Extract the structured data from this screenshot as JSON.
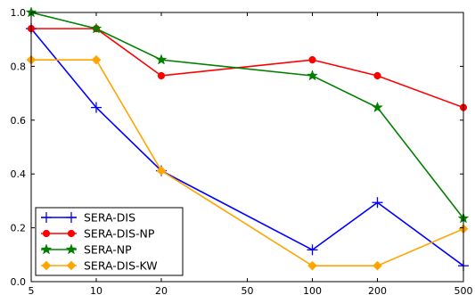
{
  "chart_data": {
    "type": "line",
    "title": "",
    "xlabel": "",
    "ylabel": "",
    "x_scale": "log",
    "x": [
      5,
      10,
      20,
      100,
      200,
      500
    ],
    "x_ticks": [
      5,
      10,
      20,
      50,
      100,
      200,
      500
    ],
    "x_tick_labels": [
      "5",
      "10",
      "20",
      "50",
      "100",
      "200",
      "500"
    ],
    "xlim": [
      5,
      500
    ],
    "ylim": [
      0.0,
      1.0
    ],
    "y_ticks": [
      0.0,
      0.2,
      0.4,
      0.6,
      0.8,
      1.0
    ],
    "y_tick_labels": [
      "0.0",
      "0.2",
      "0.4",
      "0.6",
      "0.8",
      "1.0"
    ],
    "grid": false,
    "legend_position": "bottom-left",
    "series": [
      {
        "name": "SERA-DIS",
        "color": "#0000ff",
        "marker": "plus",
        "values": [
          0.94,
          0.647,
          0.412,
          0.118,
          0.294,
          0.059
        ]
      },
      {
        "name": "SERA-DIS-NP",
        "color": "#ff0000",
        "marker": "circle",
        "values": [
          0.94,
          0.94,
          0.765,
          0.824,
          0.765,
          0.647
        ]
      },
      {
        "name": "SERA-NP",
        "color": "#008000",
        "marker": "star",
        "values": [
          1.0,
          0.94,
          0.824,
          0.765,
          0.647,
          0.235
        ]
      },
      {
        "name": "SERA-DIS-KW",
        "color": "#ffa500",
        "marker": "diamond",
        "values": [
          0.824,
          0.824,
          0.412,
          0.059,
          0.059,
          0.196
        ]
      }
    ]
  }
}
